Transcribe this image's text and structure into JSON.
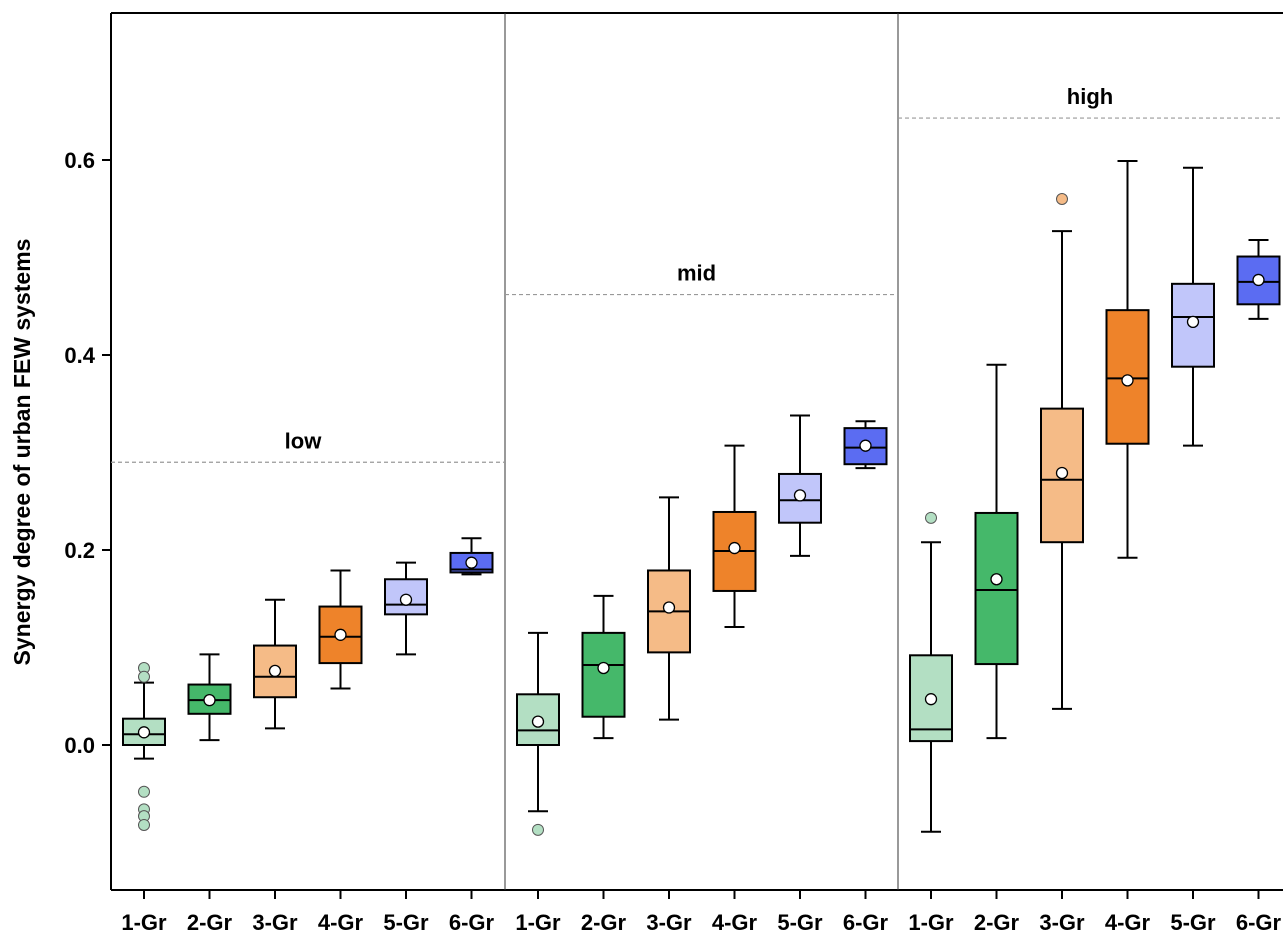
{
  "chart_data": {
    "type": "box",
    "title": "",
    "xlabel": "",
    "ylabel": "Synergy degree of urban FEW systems",
    "ylim": [
      -0.15,
      0.75
    ],
    "yticks": [
      0.0,
      0.2,
      0.4,
      0.6
    ],
    "ytick_labels": [
      "0.0",
      "0.2",
      "0.4",
      "0.6"
    ],
    "grid": false,
    "categories": [
      "1-Gr",
      "2-Gr",
      "3-Gr",
      "4-Gr",
      "5-Gr",
      "6-Gr"
    ],
    "colors": [
      "#b3dfc3",
      "#45b86a",
      "#f5bb87",
      "#ee832a",
      "#c1c6fa",
      "#5b6cf2"
    ],
    "panels": [
      {
        "label": "low",
        "reference_line": 0.29,
        "boxes": [
          {
            "category": "1-Gr",
            "whisker_low": -0.014,
            "q1": 0.0,
            "median": 0.011,
            "q3": 0.027,
            "whisker_high": 0.064,
            "mean": 0.013,
            "outliers": [
              0.079,
              0.07,
              -0.048,
              -0.066,
              -0.073,
              -0.082
            ]
          },
          {
            "category": "2-Gr",
            "whisker_low": 0.005,
            "q1": 0.032,
            "median": 0.046,
            "q3": 0.062,
            "whisker_high": 0.093,
            "mean": 0.046,
            "outliers": []
          },
          {
            "category": "3-Gr",
            "whisker_low": 0.017,
            "q1": 0.049,
            "median": 0.07,
            "q3": 0.102,
            "whisker_high": 0.149,
            "mean": 0.076,
            "outliers": []
          },
          {
            "category": "4-Gr",
            "whisker_low": 0.058,
            "q1": 0.084,
            "median": 0.111,
            "q3": 0.142,
            "whisker_high": 0.179,
            "mean": 0.113,
            "outliers": []
          },
          {
            "category": "5-Gr",
            "whisker_low": 0.093,
            "q1": 0.134,
            "median": 0.144,
            "q3": 0.17,
            "whisker_high": 0.187,
            "mean": 0.149,
            "outliers": []
          },
          {
            "category": "6-Gr",
            "whisker_low": 0.175,
            "q1": 0.177,
            "median": 0.18,
            "q3": 0.197,
            "whisker_high": 0.212,
            "mean": 0.187,
            "outliers": []
          }
        ]
      },
      {
        "label": "mid",
        "reference_line": 0.462,
        "boxes": [
          {
            "category": "1-Gr",
            "whisker_low": -0.068,
            "q1": 0.0,
            "median": 0.015,
            "q3": 0.052,
            "whisker_high": 0.115,
            "mean": 0.024,
            "outliers": [
              -0.087
            ]
          },
          {
            "category": "2-Gr",
            "whisker_low": 0.007,
            "q1": 0.029,
            "median": 0.082,
            "q3": 0.115,
            "whisker_high": 0.153,
            "mean": 0.079,
            "outliers": []
          },
          {
            "category": "3-Gr",
            "whisker_low": 0.026,
            "q1": 0.095,
            "median": 0.137,
            "q3": 0.179,
            "whisker_high": 0.254,
            "mean": 0.141,
            "outliers": []
          },
          {
            "category": "4-Gr",
            "whisker_low": 0.121,
            "q1": 0.158,
            "median": 0.199,
            "q3": 0.239,
            "whisker_high": 0.307,
            "mean": 0.202,
            "outliers": []
          },
          {
            "category": "5-Gr",
            "whisker_low": 0.194,
            "q1": 0.228,
            "median": 0.251,
            "q3": 0.278,
            "whisker_high": 0.338,
            "mean": 0.256,
            "outliers": []
          },
          {
            "category": "6-Gr",
            "whisker_low": 0.284,
            "q1": 0.288,
            "median": 0.305,
            "q3": 0.325,
            "whisker_high": 0.332,
            "mean": 0.307,
            "outliers": []
          }
        ]
      },
      {
        "label": "high",
        "reference_line": 0.643,
        "boxes": [
          {
            "category": "1-Gr",
            "whisker_low": -0.089,
            "q1": 0.004,
            "median": 0.016,
            "q3": 0.092,
            "whisker_high": 0.208,
            "mean": 0.047,
            "outliers": [
              0.233
            ]
          },
          {
            "category": "2-Gr",
            "whisker_low": 0.007,
            "q1": 0.083,
            "median": 0.159,
            "q3": 0.238,
            "whisker_high": 0.39,
            "mean": 0.17,
            "outliers": []
          },
          {
            "category": "3-Gr",
            "whisker_low": 0.037,
            "q1": 0.208,
            "median": 0.272,
            "q3": 0.345,
            "whisker_high": 0.527,
            "mean": 0.279,
            "outliers": [
              0.56
            ]
          },
          {
            "category": "4-Gr",
            "whisker_low": 0.192,
            "q1": 0.309,
            "median": 0.376,
            "q3": 0.446,
            "whisker_high": 0.599,
            "mean": 0.374,
            "outliers": []
          },
          {
            "category": "5-Gr",
            "whisker_low": 0.307,
            "q1": 0.388,
            "median": 0.439,
            "q3": 0.473,
            "whisker_high": 0.592,
            "mean": 0.434,
            "outliers": []
          },
          {
            "category": "6-Gr",
            "whisker_low": 0.437,
            "q1": 0.452,
            "median": 0.475,
            "q3": 0.501,
            "whisker_high": 0.518,
            "mean": 0.477,
            "outliers": []
          }
        ]
      }
    ]
  }
}
